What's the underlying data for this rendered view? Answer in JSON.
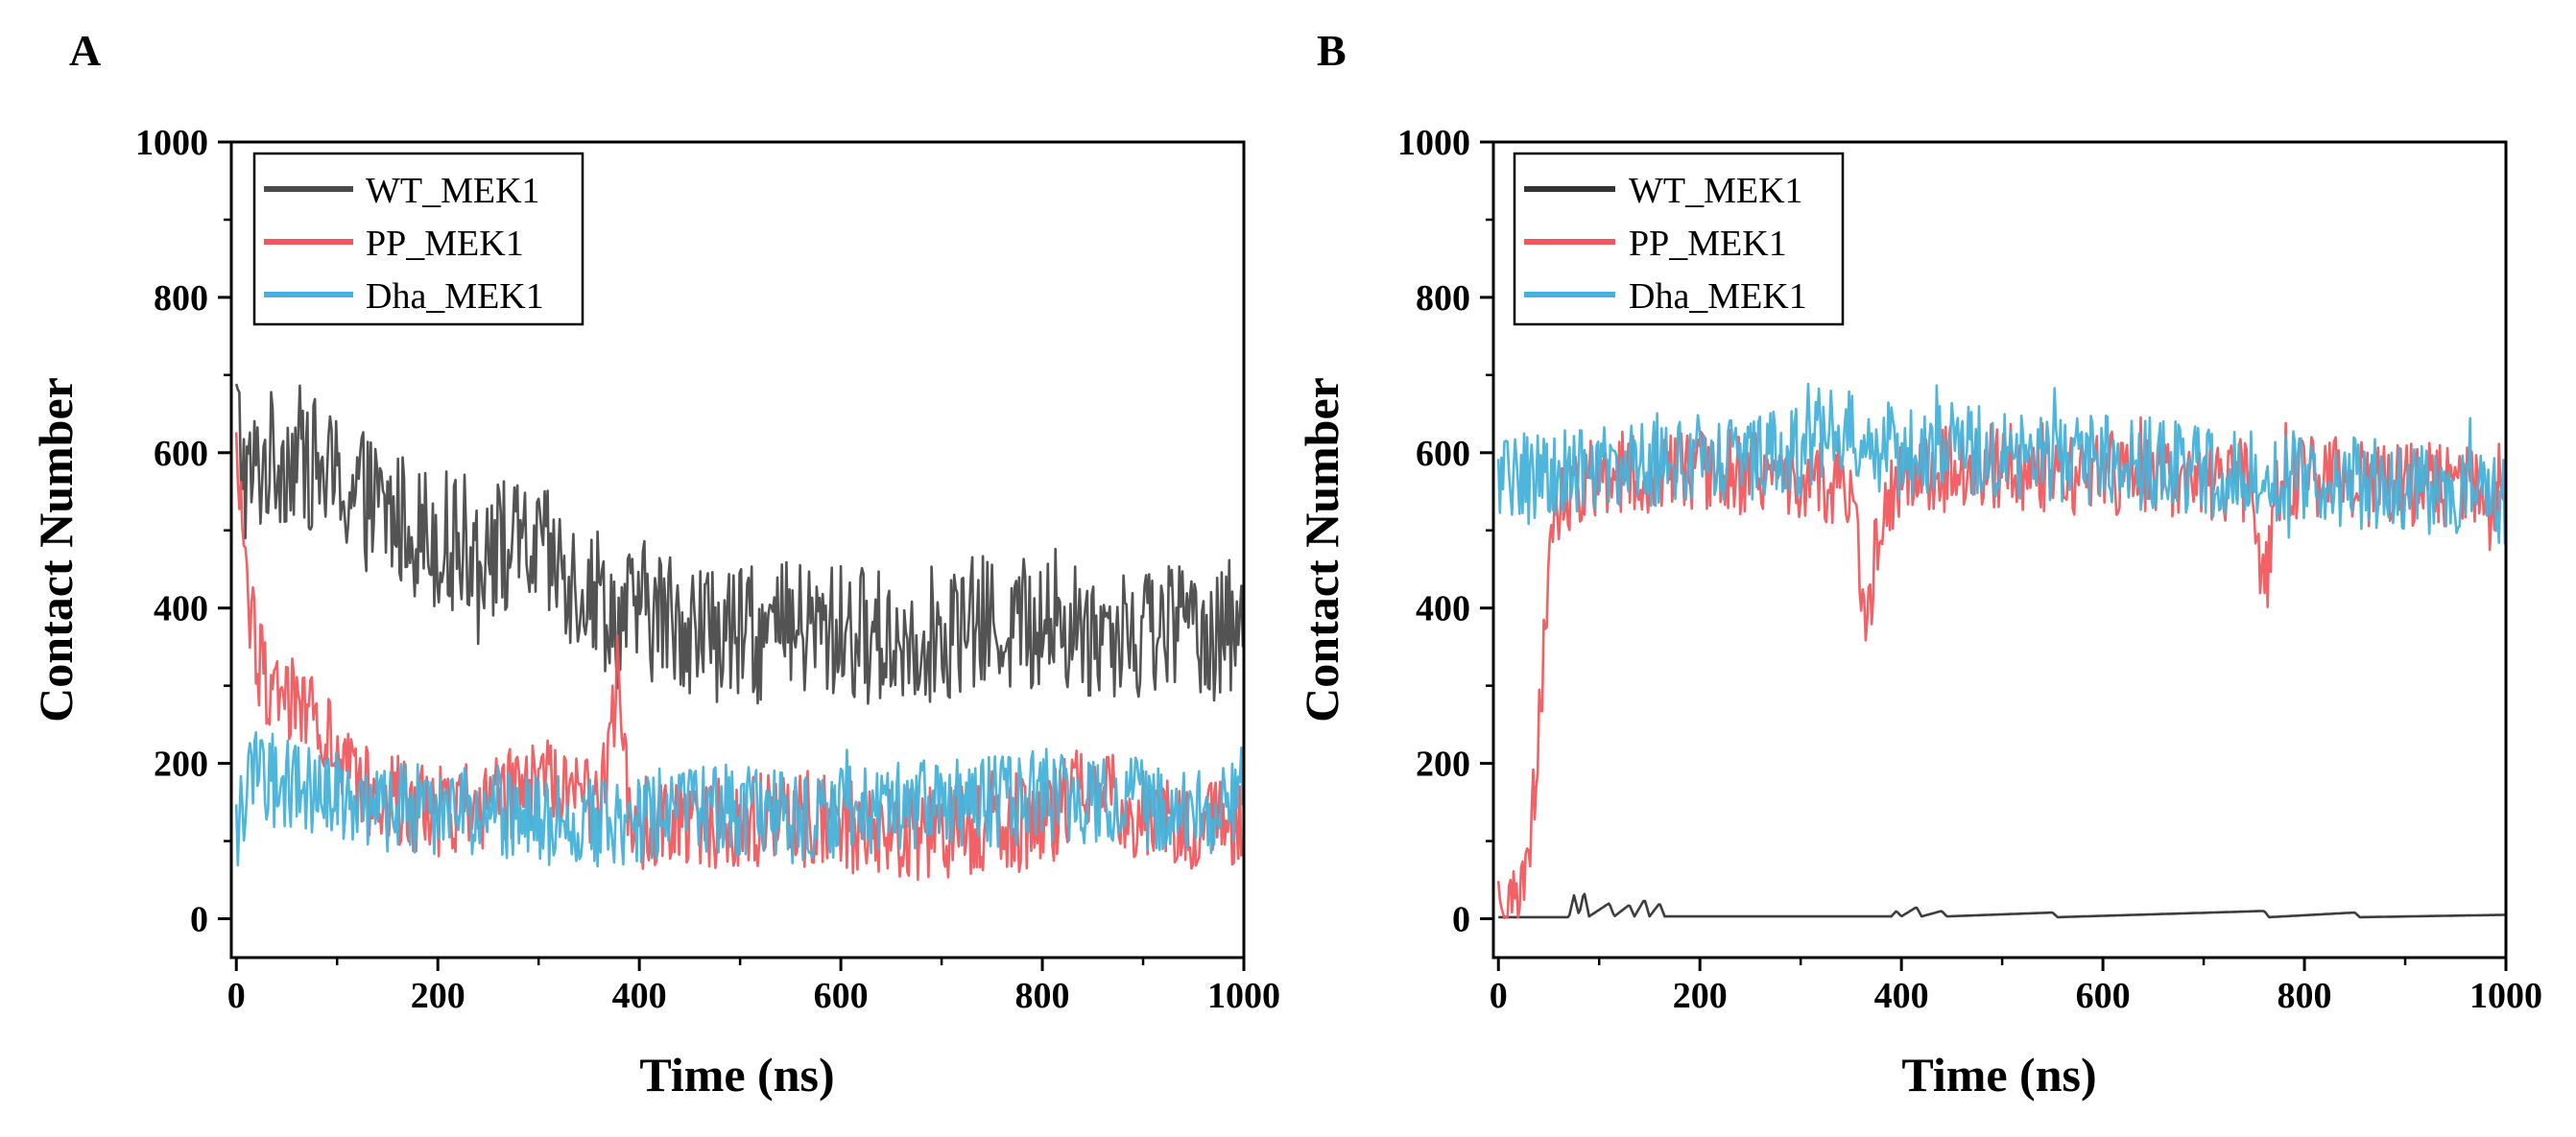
{
  "chart_data": [
    {
      "panel": "A",
      "type": "line",
      "xlabel": "Time (ns)",
      "ylabel": "Contact Number",
      "xlim": [
        -5,
        1000
      ],
      "ylim": [
        -50,
        1000
      ],
      "xticks": [
        0,
        200,
        400,
        600,
        800,
        1000
      ],
      "yticks": [
        0,
        200,
        400,
        600,
        800,
        1000
      ],
      "legend_position": "top-left",
      "series": [
        {
          "name": "WT_MEK1",
          "color": "#4a4a4a",
          "noise": 90,
          "anchors": [
            [
              0,
              650
            ],
            [
              10,
              560
            ],
            [
              30,
              590
            ],
            [
              60,
              600
            ],
            [
              100,
              560
            ],
            [
              150,
              520
            ],
            [
              200,
              490
            ],
            [
              250,
              480
            ],
            [
              300,
              470
            ],
            [
              330,
              440
            ],
            [
              360,
              420
            ],
            [
              380,
              380
            ],
            [
              400,
              400
            ],
            [
              450,
              380
            ],
            [
              500,
              360
            ],
            [
              550,
              370
            ],
            [
              600,
              370
            ],
            [
              650,
              360
            ],
            [
              700,
              370
            ],
            [
              750,
              380
            ],
            [
              800,
              380
            ],
            [
              850,
              370
            ],
            [
              900,
              370
            ],
            [
              950,
              380
            ],
            [
              1000,
              370
            ]
          ]
        },
        {
          "name": "PP_MEK1",
          "color": "#f0585e",
          "noise": 60,
          "anchors": [
            [
              0,
              600
            ],
            [
              10,
              450
            ],
            [
              20,
              330
            ],
            [
              40,
              290
            ],
            [
              80,
              260
            ],
            [
              100,
              200
            ],
            [
              130,
              160
            ],
            [
              200,
              140
            ],
            [
              250,
              150
            ],
            [
              300,
              180
            ],
            [
              350,
              150
            ],
            [
              370,
              200
            ],
            [
              380,
              350
            ],
            [
              390,
              120
            ],
            [
              450,
              130
            ],
            [
              500,
              120
            ],
            [
              550,
              140
            ],
            [
              600,
              120
            ],
            [
              650,
              110
            ],
            [
              700,
              110
            ],
            [
              750,
              120
            ],
            [
              800,
              120
            ],
            [
              850,
              180
            ],
            [
              900,
              130
            ],
            [
              950,
              120
            ],
            [
              1000,
              130
            ]
          ]
        },
        {
          "name": "Dha_MEK1",
          "color": "#45b2d9",
          "noise": 60,
          "anchors": [
            [
              0,
              120
            ],
            [
              20,
              190
            ],
            [
              50,
              170
            ],
            [
              100,
              160
            ],
            [
              150,
              140
            ],
            [
              200,
              140
            ],
            [
              250,
              140
            ],
            [
              300,
              130
            ],
            [
              350,
              120
            ],
            [
              400,
              130
            ],
            [
              450,
              140
            ],
            [
              500,
              140
            ],
            [
              550,
              130
            ],
            [
              600,
              140
            ],
            [
              650,
              140
            ],
            [
              700,
              150
            ],
            [
              750,
              150
            ],
            [
              800,
              160
            ],
            [
              850,
              150
            ],
            [
              900,
              150
            ],
            [
              950,
              130
            ],
            [
              1000,
              150
            ]
          ]
        }
      ]
    },
    {
      "panel": "B",
      "type": "line",
      "xlabel": "Time (ns)",
      "ylabel": "Contact Number",
      "xlim": [
        -5,
        1000
      ],
      "ylim": [
        -50,
        1000
      ],
      "xticks": [
        0,
        200,
        400,
        600,
        800,
        1000
      ],
      "yticks": [
        0,
        200,
        400,
        600,
        800,
        1000
      ],
      "legend_position": "top-left",
      "series": [
        {
          "name": "WT_MEK1",
          "color": "#333333",
          "noise": 0,
          "anchors": [
            [
              0,
              2
            ],
            [
              70,
              2
            ],
            [
              75,
              30
            ],
            [
              80,
              5
            ],
            [
              85,
              35
            ],
            [
              90,
              3
            ],
            [
              110,
              20
            ],
            [
              115,
              3
            ],
            [
              130,
              18
            ],
            [
              135,
              3
            ],
            [
              145,
              25
            ],
            [
              150,
              3
            ],
            [
              160,
              20
            ],
            [
              165,
              3
            ],
            [
              390,
              3
            ],
            [
              395,
              10
            ],
            [
              400,
              3
            ],
            [
              415,
              15
            ],
            [
              420,
              3
            ],
            [
              440,
              10
            ],
            [
              445,
              3
            ],
            [
              550,
              8
            ],
            [
              555,
              2
            ],
            [
              760,
              10
            ],
            [
              765,
              2
            ],
            [
              850,
              8
            ],
            [
              855,
              2
            ],
            [
              1000,
              5
            ]
          ]
        },
        {
          "name": "PP_MEK1",
          "color": "#f0585e",
          "noise": 55,
          "anchors": [
            [
              0,
              20
            ],
            [
              20,
              20
            ],
            [
              30,
              80
            ],
            [
              40,
              250
            ],
            [
              50,
              430
            ],
            [
              60,
              520
            ],
            [
              80,
              560
            ],
            [
              100,
              570
            ],
            [
              150,
              575
            ],
            [
              200,
              580
            ],
            [
              250,
              575
            ],
            [
              300,
              570
            ],
            [
              350,
              560
            ],
            [
              365,
              380
            ],
            [
              380,
              520
            ],
            [
              400,
              570
            ],
            [
              450,
              580
            ],
            [
              500,
              585
            ],
            [
              550,
              575
            ],
            [
              600,
              575
            ],
            [
              650,
              570
            ],
            [
              700,
              570
            ],
            [
              750,
              560
            ],
            [
              760,
              400
            ],
            [
              770,
              550
            ],
            [
              800,
              570
            ],
            [
              850,
              560
            ],
            [
              900,
              560
            ],
            [
              950,
              560
            ],
            [
              1000,
              540
            ]
          ]
        },
        {
          "name": "Dha_MEK1",
          "color": "#45b2d9",
          "noise": 60,
          "anchors": [
            [
              0,
              560
            ],
            [
              50,
              570
            ],
            [
              100,
              580
            ],
            [
              150,
              590
            ],
            [
              200,
              600
            ],
            [
              250,
              590
            ],
            [
              300,
              600
            ],
            [
              325,
              640
            ],
            [
              350,
              620
            ],
            [
              400,
              600
            ],
            [
              450,
              610
            ],
            [
              500,
              600
            ],
            [
              550,
              590
            ],
            [
              600,
              590
            ],
            [
              650,
              585
            ],
            [
              700,
              575
            ],
            [
              750,
              570
            ],
            [
              800,
              570
            ],
            [
              850,
              560
            ],
            [
              900,
              560
            ],
            [
              950,
              550
            ],
            [
              1000,
              540
            ]
          ]
        }
      ]
    }
  ]
}
